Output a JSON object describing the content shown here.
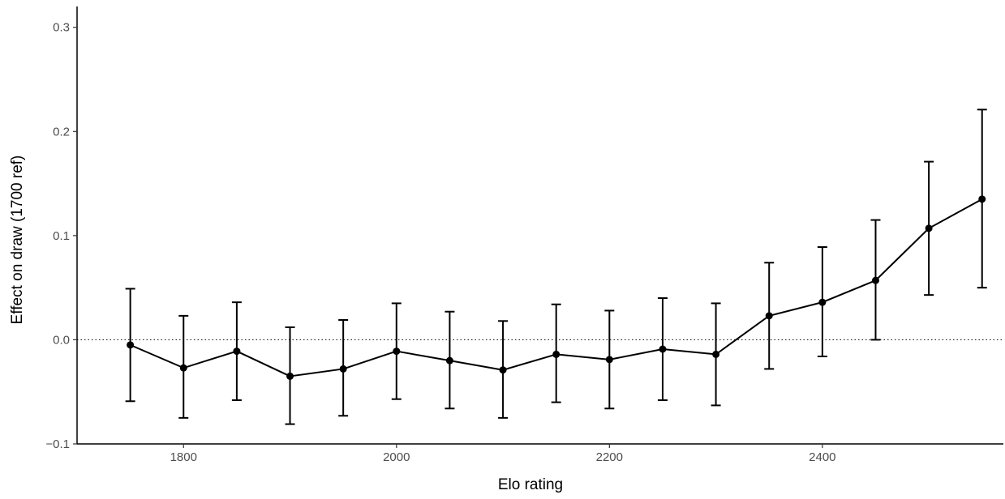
{
  "chart_data": {
    "type": "line",
    "title": "",
    "xlabel": "Elo rating",
    "ylabel": "Effect on draw (1700 ref)",
    "xlim": [
      1700,
      2570
    ],
    "ylim": [
      -0.1,
      0.32
    ],
    "x_ticks": [
      1800,
      2000,
      2200,
      2400
    ],
    "x_tick_labels": [
      "1800",
      "2000",
      "2200",
      "2400"
    ],
    "y_ticks": [
      -0.1,
      0.0,
      0.1,
      0.2,
      0.3
    ],
    "y_tick_labels": [
      "−0.1",
      "0.0",
      "0.1",
      "0.2",
      "0.3"
    ],
    "reference_line": {
      "y": 0,
      "style": "dotted"
    },
    "grid": false,
    "legend": "none",
    "colors": {
      "line": "#000000",
      "points": "#000000",
      "errorbars": "#000000",
      "axis": "#000000",
      "tick_text": "#4d4d4d"
    },
    "series": [
      {
        "x": [
          1750,
          1800,
          1850,
          1900,
          1950,
          2000,
          2050,
          2100,
          2150,
          2200,
          2250,
          2300,
          2350,
          2400,
          2450,
          2500,
          2550
        ],
        "y": [
          -0.005,
          -0.027,
          -0.011,
          -0.035,
          -0.028,
          -0.011,
          -0.02,
          -0.029,
          -0.014,
          -0.019,
          -0.009,
          -0.014,
          0.023,
          0.036,
          0.057,
          0.107,
          0.135
        ],
        "lower": [
          -0.059,
          -0.075,
          -0.058,
          -0.081,
          -0.073,
          -0.057,
          -0.066,
          -0.075,
          -0.06,
          -0.066,
          -0.058,
          -0.063,
          -0.028,
          -0.016,
          0.0,
          0.043,
          0.05
        ],
        "upper": [
          0.049,
          0.023,
          0.036,
          0.012,
          0.019,
          0.035,
          0.027,
          0.018,
          0.034,
          0.028,
          0.04,
          0.035,
          0.074,
          0.089,
          0.115,
          0.171,
          0.221
        ]
      }
    ]
  }
}
